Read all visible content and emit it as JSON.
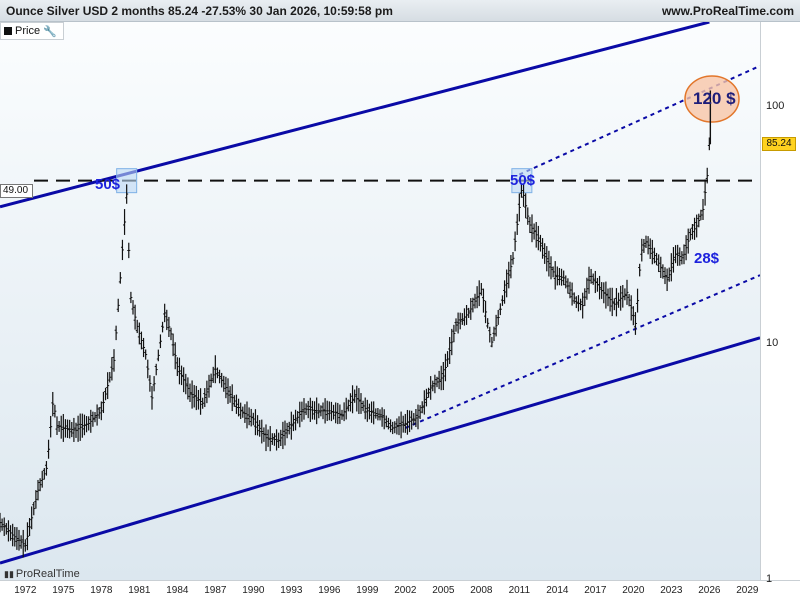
{
  "header": {
    "title": "Ounce Silver USD 2 months 85.24 -27.53% 30 Jan 2026, 10:59:58 pm",
    "site": "www.ProRealTime.com"
  },
  "legend": {
    "label": "Price"
  },
  "watermark": {
    "label": "ProRealTime"
  },
  "price_tag": "85.24",
  "hline_label": "49.00",
  "annotations": {
    "peak_1980": "50$",
    "peak_2011": "50$",
    "low_2024": "28$",
    "target": "120 $"
  },
  "colors": {
    "channel": "#0a0aa6",
    "candles": "#111111",
    "hline": "#111111",
    "annotation_text": "#1d22dd",
    "box_fill": "#bcd8f5",
    "circle_fill": "#f7c6a8",
    "circle_stroke": "#e2762b",
    "price_tag": "#ffd21f"
  },
  "chart_data": {
    "type": "line",
    "title": "Ounce Silver USD 2 months",
    "y_scale": "log",
    "y_ticks": [
      1,
      10,
      100
    ],
    "y_tick_labels": [
      "1",
      "10",
      "100"
    ],
    "x_ticks": [
      1972,
      1975,
      1978,
      1981,
      1984,
      1987,
      1990,
      1993,
      1996,
      1999,
      2002,
      2005,
      2008,
      2011,
      2014,
      2017,
      2020,
      2023,
      2026,
      2029
    ],
    "x_tick_labels": [
      "1972",
      "1975",
      "1978",
      "1981",
      "1984",
      "1987",
      "1990",
      "1993",
      "1996",
      "1999",
      "2002",
      "2005",
      "2008",
      "2011",
      "2014",
      "2017",
      "2020",
      "2023",
      "2026",
      "2029"
    ],
    "xlim": [
      1970.0,
      2030.0
    ],
    "ylim": [
      1.0,
      230.0
    ],
    "series": [
      {
        "values": [
          [
            1970.0,
            1.75
          ],
          [
            1971.0,
            1.55
          ],
          [
            1972.0,
            1.4
          ],
          [
            1973.0,
            2.4
          ],
          [
            1973.7,
            3.0
          ],
          [
            1974.2,
            5.8
          ],
          [
            1974.5,
            4.5
          ],
          [
            1975.0,
            4.4
          ],
          [
            1976.0,
            4.3
          ],
          [
            1976.5,
            4.5
          ],
          [
            1977.0,
            4.6
          ],
          [
            1978.0,
            5.2
          ],
          [
            1979.0,
            8.5
          ],
          [
            1979.5,
            19.0
          ],
          [
            1980.0,
            43.0
          ],
          [
            1980.3,
            16.0
          ],
          [
            1980.8,
            12.0
          ],
          [
            1981.5,
            9.0
          ],
          [
            1982.0,
            5.9
          ],
          [
            1983.0,
            13.5
          ],
          [
            1983.5,
            11.0
          ],
          [
            1984.0,
            8.0
          ],
          [
            1985.0,
            6.2
          ],
          [
            1986.0,
            5.6
          ],
          [
            1987.0,
            7.8
          ],
          [
            1988.0,
            6.3
          ],
          [
            1989.0,
            5.2
          ],
          [
            1990.0,
            4.8
          ],
          [
            1991.0,
            4.0
          ],
          [
            1992.0,
            3.9
          ],
          [
            1993.0,
            4.5
          ],
          [
            1994.0,
            5.3
          ],
          [
            1995.0,
            5.2
          ],
          [
            1996.0,
            5.2
          ],
          [
            1997.0,
            5.0
          ],
          [
            1998.0,
            6.0
          ],
          [
            1999.0,
            5.2
          ],
          [
            2000.0,
            5.0
          ],
          [
            2001.0,
            4.4
          ],
          [
            2002.0,
            4.6
          ],
          [
            2003.0,
            4.9
          ],
          [
            2004.0,
            6.5
          ],
          [
            2005.0,
            7.3
          ],
          [
            2006.0,
            12.0
          ],
          [
            2007.0,
            13.5
          ],
          [
            2008.0,
            17.0
          ],
          [
            2008.8,
            10.0
          ],
          [
            2009.5,
            14.0
          ],
          [
            2010.0,
            18.0
          ],
          [
            2010.5,
            23.0
          ],
          [
            2011.2,
            46.0
          ],
          [
            2011.8,
            32.0
          ],
          [
            2012.5,
            28.0
          ],
          [
            2013.3,
            22.0
          ],
          [
            2013.8,
            19.5
          ],
          [
            2014.5,
            19.0
          ],
          [
            2015.5,
            15.0
          ],
          [
            2016.0,
            14.5
          ],
          [
            2016.6,
            19.5
          ],
          [
            2017.5,
            16.8
          ],
          [
            2018.5,
            14.7
          ],
          [
            2019.5,
            16.5
          ],
          [
            2020.2,
            12.0
          ],
          [
            2020.6,
            24.5
          ],
          [
            2021.0,
            27.0
          ],
          [
            2021.8,
            23.0
          ],
          [
            2022.7,
            18.5
          ],
          [
            2023.3,
            24.0
          ],
          [
            2023.9,
            23.0
          ],
          [
            2024.5,
            29.0
          ],
          [
            2025.0,
            31.5
          ],
          [
            2025.5,
            37.0
          ],
          [
            2025.9,
            55.0
          ],
          [
            2026.08,
            85.24
          ]
        ]
      }
    ],
    "horizontal_lines": [
      49.0
    ],
    "channel_lines": [
      {
        "style": "solid",
        "points": [
          [
            1970.0,
            38.0
          ],
          [
            2026.0,
            230.0
          ]
        ]
      },
      {
        "style": "solid",
        "points": [
          [
            1970.0,
            1.18
          ],
          [
            2030.0,
            10.6
          ]
        ]
      },
      {
        "style": "dotted",
        "points": [
          [
            2011.0,
            52.0
          ],
          [
            2030.0,
            150.0
          ]
        ]
      },
      {
        "style": "dotted",
        "points": [
          [
            2002.0,
            4.4
          ],
          [
            2030.0,
            19.5
          ]
        ]
      }
    ],
    "grid": false,
    "legend": "top-left"
  }
}
